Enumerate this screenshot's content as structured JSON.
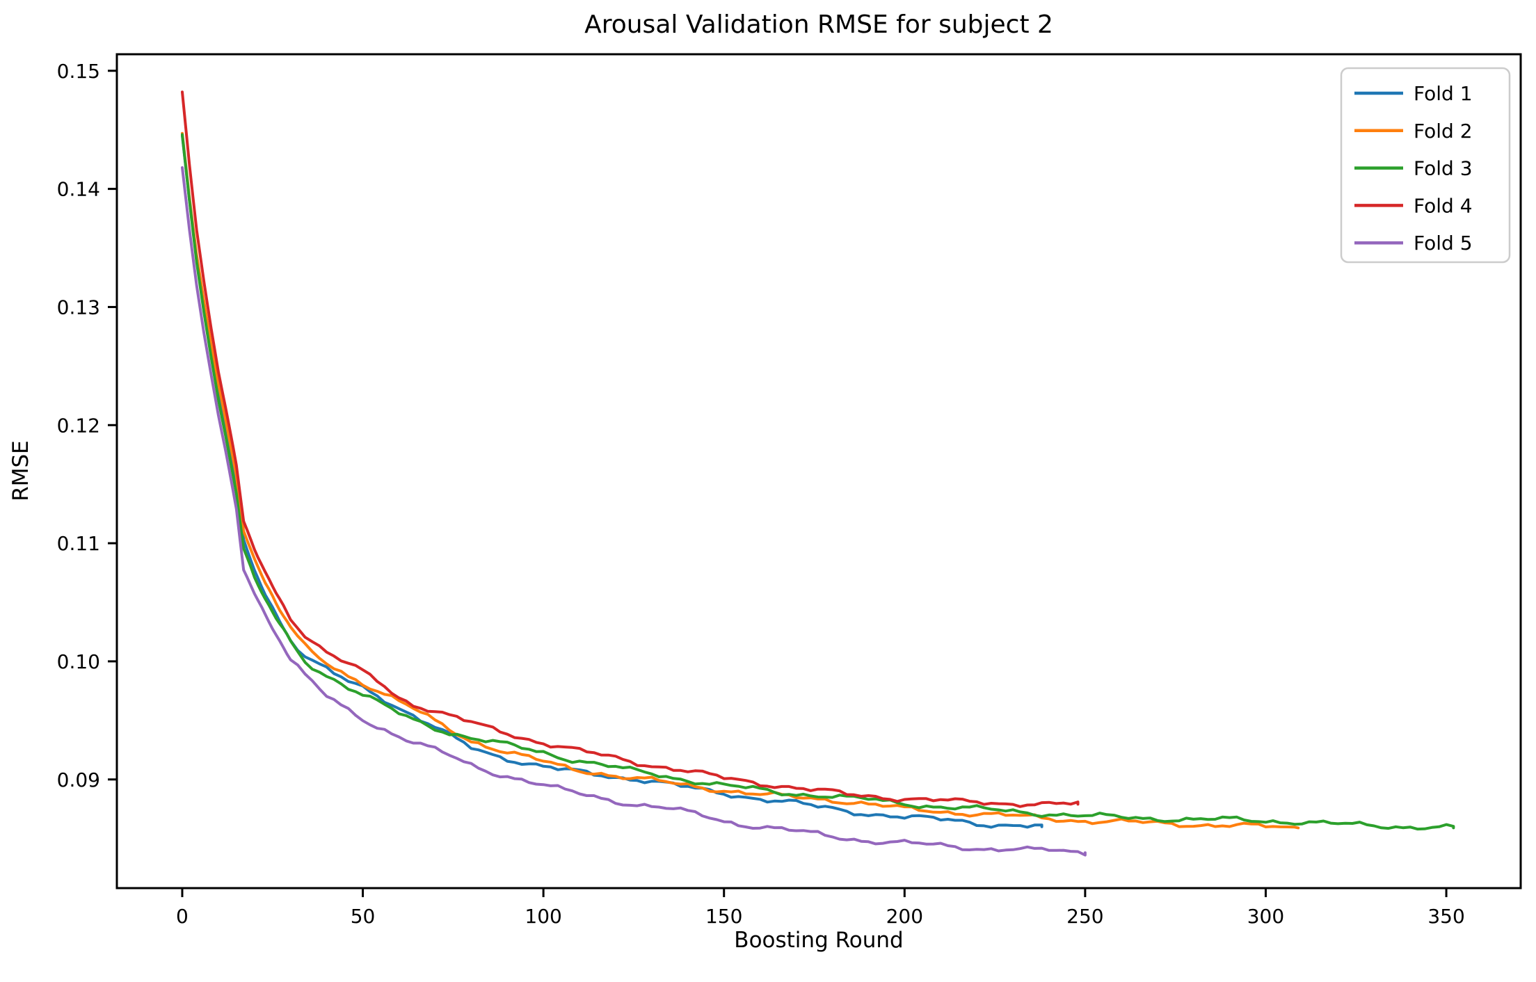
{
  "title": "Arousal Validation RMSE for subject 2",
  "chart_data": {
    "type": "line",
    "title": "Arousal Validation RMSE for subject 2",
    "xlabel": "Boosting Round",
    "ylabel": "RMSE",
    "xlim": [
      -18.1,
      370.6
    ],
    "ylim": [
      0.0808,
      0.1514
    ],
    "xticks": [
      0,
      50,
      100,
      150,
      200,
      250,
      300,
      350
    ],
    "yticks": [
      0.15,
      0.14,
      0.13,
      0.12,
      0.11,
      0.1,
      0.09
    ],
    "ytick_labels": [
      "0.15",
      "0.14",
      "0.13",
      "0.12",
      "0.11",
      "0.10",
      "0.09"
    ],
    "grid": false,
    "legend_position": "upper right",
    "background": "#ffffff",
    "spine_color": "#000000",
    "legend_border_color": "#cccccc",
    "series": [
      {
        "name": "Fold 1",
        "color": "#1f77b4",
        "points": [
          [
            0,
            0.1445
          ],
          [
            2,
            0.139
          ],
          [
            4,
            0.134
          ],
          [
            6,
            0.13
          ],
          [
            8,
            0.1262
          ],
          [
            10,
            0.1228
          ],
          [
            12,
            0.1198
          ],
          [
            15,
            0.115
          ],
          [
            17,
            0.1103
          ],
          [
            20,
            0.1078
          ],
          [
            23,
            0.1058
          ],
          [
            26,
            0.104
          ],
          [
            30,
            0.1018
          ],
          [
            34,
            0.1004
          ],
          [
            38,
            0.0996
          ],
          [
            42,
            0.0989
          ],
          [
            46,
            0.0983
          ],
          [
            50,
            0.0978
          ],
          [
            55,
            0.097
          ],
          [
            60,
            0.0961
          ],
          [
            65,
            0.0952
          ],
          [
            70,
            0.0944
          ],
          [
            75,
            0.0935
          ],
          [
            80,
            0.0927
          ],
          [
            85,
            0.0922
          ],
          [
            90,
            0.0918
          ],
          [
            95,
            0.0914
          ],
          [
            100,
            0.0911
          ],
          [
            105,
            0.0908
          ],
          [
            110,
            0.0906
          ],
          [
            115,
            0.0904
          ],
          [
            120,
            0.0902
          ],
          [
            125,
            0.0901
          ],
          [
            130,
            0.0899
          ],
          [
            135,
            0.0896
          ],
          [
            140,
            0.0893
          ],
          [
            145,
            0.089
          ],
          [
            150,
            0.0888
          ],
          [
            155,
            0.0886
          ],
          [
            160,
            0.0884
          ],
          [
            165,
            0.0882
          ],
          [
            170,
            0.088
          ],
          [
            175,
            0.0877
          ],
          [
            180,
            0.0875
          ],
          [
            185,
            0.0873
          ],
          [
            190,
            0.0871
          ],
          [
            195,
            0.087
          ],
          [
            200,
            0.0868
          ],
          [
            205,
            0.0867
          ],
          [
            210,
            0.0866
          ],
          [
            215,
            0.0865
          ],
          [
            220,
            0.0863
          ],
          [
            225,
            0.0862
          ],
          [
            230,
            0.0861
          ],
          [
            238,
            0.086
          ]
        ]
      },
      {
        "name": "Fold 2",
        "color": "#ff7f0e",
        "points": [
          [
            0,
            0.1447
          ],
          [
            2,
            0.1392
          ],
          [
            4,
            0.1344
          ],
          [
            6,
            0.1305
          ],
          [
            8,
            0.1268
          ],
          [
            10,
            0.1235
          ],
          [
            12,
            0.1205
          ],
          [
            15,
            0.1158
          ],
          [
            17,
            0.1112
          ],
          [
            20,
            0.1087
          ],
          [
            23,
            0.1066
          ],
          [
            26,
            0.1049
          ],
          [
            30,
            0.1028
          ],
          [
            34,
            0.1012
          ],
          [
            38,
            0.1002
          ],
          [
            42,
            0.0995
          ],
          [
            46,
            0.0988
          ],
          [
            50,
            0.0982
          ],
          [
            55,
            0.0974
          ],
          [
            60,
            0.0966
          ],
          [
            65,
            0.0958
          ],
          [
            70,
            0.0949
          ],
          [
            75,
            0.0941
          ],
          [
            80,
            0.0933
          ],
          [
            85,
            0.0928
          ],
          [
            90,
            0.0923
          ],
          [
            95,
            0.0919
          ],
          [
            100,
            0.0915
          ],
          [
            105,
            0.0911
          ],
          [
            110,
            0.0908
          ],
          [
            115,
            0.0906
          ],
          [
            120,
            0.0903
          ],
          [
            125,
            0.0901
          ],
          [
            130,
            0.0899
          ],
          [
            135,
            0.0897
          ],
          [
            140,
            0.0895
          ],
          [
            145,
            0.0893
          ],
          [
            150,
            0.0891
          ],
          [
            155,
            0.0889
          ],
          [
            160,
            0.0887
          ],
          [
            165,
            0.0886
          ],
          [
            170,
            0.0885
          ],
          [
            175,
            0.0884
          ],
          [
            180,
            0.0883
          ],
          [
            185,
            0.0881
          ],
          [
            190,
            0.0879
          ],
          [
            195,
            0.0877
          ],
          [
            200,
            0.0875
          ],
          [
            205,
            0.0874
          ],
          [
            210,
            0.0873
          ],
          [
            215,
            0.0872
          ],
          [
            220,
            0.0871
          ],
          [
            225,
            0.087
          ],
          [
            230,
            0.0869
          ],
          [
            240,
            0.0867
          ],
          [
            250,
            0.0865
          ],
          [
            260,
            0.0864
          ],
          [
            270,
            0.0863
          ],
          [
            280,
            0.0862
          ],
          [
            290,
            0.0861
          ],
          [
            300,
            0.086
          ],
          [
            309,
            0.0859
          ]
        ]
      },
      {
        "name": "Fold 3",
        "color": "#2ca02c",
        "points": [
          [
            0,
            0.1446
          ],
          [
            2,
            0.139
          ],
          [
            4,
            0.1338
          ],
          [
            6,
            0.1296
          ],
          [
            8,
            0.1258
          ],
          [
            10,
            0.1222
          ],
          [
            12,
            0.1192
          ],
          [
            15,
            0.1142
          ],
          [
            17,
            0.1095
          ],
          [
            20,
            0.107
          ],
          [
            23,
            0.1052
          ],
          [
            26,
            0.1036
          ],
          [
            30,
            0.1016
          ],
          [
            34,
            0.1
          ],
          [
            38,
            0.0992
          ],
          [
            42,
            0.0985
          ],
          [
            46,
            0.0978
          ],
          [
            51,
            0.097
          ],
          [
            56,
            0.0962
          ],
          [
            62,
            0.0953
          ],
          [
            68,
            0.0946
          ],
          [
            74,
            0.094
          ],
          [
            80,
            0.0935
          ],
          [
            85,
            0.0932
          ],
          [
            90,
            0.0929
          ],
          [
            95,
            0.0926
          ],
          [
            100,
            0.0923
          ],
          [
            105,
            0.0919
          ],
          [
            110,
            0.0916
          ],
          [
            115,
            0.0913
          ],
          [
            120,
            0.091
          ],
          [
            125,
            0.0907
          ],
          [
            130,
            0.0905
          ],
          [
            135,
            0.0902
          ],
          [
            140,
            0.09
          ],
          [
            145,
            0.0897
          ],
          [
            150,
            0.0895
          ],
          [
            155,
            0.0893
          ],
          [
            160,
            0.0891
          ],
          [
            165,
            0.0889
          ],
          [
            170,
            0.0888
          ],
          [
            175,
            0.0887
          ],
          [
            180,
            0.0886
          ],
          [
            185,
            0.0884
          ],
          [
            190,
            0.0883
          ],
          [
            195,
            0.0881
          ],
          [
            200,
            0.088
          ],
          [
            205,
            0.0878
          ],
          [
            210,
            0.0877
          ],
          [
            215,
            0.0876
          ],
          [
            220,
            0.0875
          ],
          [
            225,
            0.0874
          ],
          [
            230,
            0.0873
          ],
          [
            240,
            0.0871
          ],
          [
            250,
            0.0869
          ],
          [
            260,
            0.0868
          ],
          [
            270,
            0.0867
          ],
          [
            280,
            0.0866
          ],
          [
            290,
            0.0866
          ],
          [
            300,
            0.0865
          ],
          [
            310,
            0.0864
          ],
          [
            320,
            0.0862
          ],
          [
            330,
            0.0861
          ],
          [
            340,
            0.086
          ],
          [
            352,
            0.0859
          ]
        ]
      },
      {
        "name": "Fold 4",
        "color": "#d62728",
        "points": [
          [
            0,
            0.1482
          ],
          [
            2,
            0.142
          ],
          [
            4,
            0.1365
          ],
          [
            6,
            0.1322
          ],
          [
            8,
            0.1282
          ],
          [
            10,
            0.1245
          ],
          [
            12,
            0.1214
          ],
          [
            15,
            0.1165
          ],
          [
            17,
            0.1118
          ],
          [
            20,
            0.1095
          ],
          [
            23,
            0.1075
          ],
          [
            26,
            0.1058
          ],
          [
            30,
            0.1038
          ],
          [
            34,
            0.1022
          ],
          [
            38,
            0.1012
          ],
          [
            42,
            0.1004
          ],
          [
            46,
            0.0997
          ],
          [
            50,
            0.0991
          ],
          [
            55,
            0.0982
          ],
          [
            59,
            0.0971
          ],
          [
            63,
            0.0965
          ],
          [
            68,
            0.096
          ],
          [
            73,
            0.0955
          ],
          [
            78,
            0.095
          ],
          [
            84,
            0.0944
          ],
          [
            90,
            0.0939
          ],
          [
            95,
            0.0935
          ],
          [
            100,
            0.0931
          ],
          [
            105,
            0.0928
          ],
          [
            110,
            0.0924
          ],
          [
            115,
            0.0921
          ],
          [
            120,
            0.0918
          ],
          [
            125,
            0.0915
          ],
          [
            130,
            0.0912
          ],
          [
            135,
            0.091
          ],
          [
            140,
            0.0907
          ],
          [
            145,
            0.0904
          ],
          [
            150,
            0.0901
          ],
          [
            155,
            0.0899
          ],
          [
            160,
            0.0897
          ],
          [
            165,
            0.0895
          ],
          [
            170,
            0.0893
          ],
          [
            175,
            0.0891
          ],
          [
            180,
            0.0889
          ],
          [
            185,
            0.0887
          ],
          [
            190,
            0.0886
          ],
          [
            195,
            0.0885
          ],
          [
            200,
            0.0884
          ],
          [
            205,
            0.0883
          ],
          [
            210,
            0.0882
          ],
          [
            215,
            0.0881
          ],
          [
            220,
            0.0881
          ],
          [
            225,
            0.088
          ],
          [
            230,
            0.088
          ],
          [
            240,
            0.0879
          ],
          [
            248,
            0.0879
          ]
        ]
      },
      {
        "name": "Fold 5",
        "color": "#9467bd",
        "points": [
          [
            0,
            0.1418
          ],
          [
            2,
            0.1365
          ],
          [
            4,
            0.1318
          ],
          [
            6,
            0.1278
          ],
          [
            8,
            0.1242
          ],
          [
            10,
            0.1208
          ],
          [
            12,
            0.1178
          ],
          [
            15,
            0.113
          ],
          [
            17,
            0.1078
          ],
          [
            20,
            0.1058
          ],
          [
            23,
            0.104
          ],
          [
            26,
            0.1024
          ],
          [
            30,
            0.1002
          ],
          [
            34,
            0.0988
          ],
          [
            38,
            0.0976
          ],
          [
            40,
            0.097
          ],
          [
            44,
            0.0962
          ],
          [
            48,
            0.0955
          ],
          [
            52,
            0.0948
          ],
          [
            57,
            0.0941
          ],
          [
            62,
            0.0934
          ],
          [
            68,
            0.0927
          ],
          [
            74,
            0.092
          ],
          [
            80,
            0.0912
          ],
          [
            85,
            0.0907
          ],
          [
            90,
            0.0903
          ],
          [
            95,
            0.0899
          ],
          [
            100,
            0.0895
          ],
          [
            105,
            0.0891
          ],
          [
            110,
            0.0888
          ],
          [
            115,
            0.0885
          ],
          [
            120,
            0.0882
          ],
          [
            125,
            0.0879
          ],
          [
            130,
            0.0877
          ],
          [
            135,
            0.0875
          ],
          [
            140,
            0.0872
          ],
          [
            145,
            0.0869
          ],
          [
            150,
            0.0865
          ],
          [
            155,
            0.0862
          ],
          [
            160,
            0.086
          ],
          [
            165,
            0.0858
          ],
          [
            170,
            0.0856
          ],
          [
            175,
            0.0854
          ],
          [
            180,
            0.0852
          ],
          [
            185,
            0.085
          ],
          [
            190,
            0.0848
          ],
          [
            195,
            0.0847
          ],
          [
            200,
            0.0846
          ],
          [
            205,
            0.0845
          ],
          [
            210,
            0.0844
          ],
          [
            215,
            0.0843
          ],
          [
            220,
            0.0842
          ],
          [
            225,
            0.0841
          ],
          [
            230,
            0.0841
          ],
          [
            235,
            0.084
          ],
          [
            240,
            0.084
          ],
          [
            245,
            0.0839
          ],
          [
            250,
            0.0838
          ]
        ]
      }
    ]
  }
}
